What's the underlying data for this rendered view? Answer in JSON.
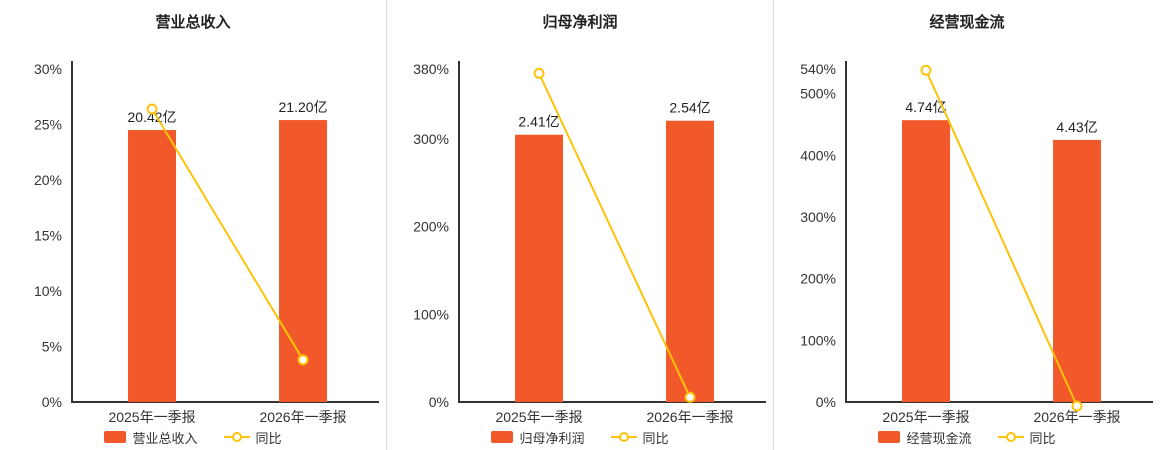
{
  "colors": {
    "bar": "#f1592a",
    "line": "#fdc30b",
    "axis": "#333333",
    "text": "#333333",
    "value_label": "#222222",
    "divider": "#dddddd",
    "background": "#ffffff"
  },
  "chart_data": [
    {
      "type": "bar+line",
      "title": "营业总收入",
      "categories": [
        "2025年一季报",
        "2026年一季报"
      ],
      "bar_series": {
        "name": "营业总收入",
        "unit": "亿",
        "values": [
          20.42,
          21.2
        ],
        "value_labels": [
          "20.42亿",
          "21.20亿"
        ],
        "tops_on_pct_axis": [
          24.5,
          25.4
        ]
      },
      "line_series": {
        "name": "同比",
        "values_pct": [
          26.4,
          3.8
        ]
      },
      "ylim": [
        0,
        30
      ],
      "yticks": [
        0,
        5,
        10,
        15,
        20,
        25,
        30
      ],
      "ytick_suffix": "%",
      "grid": false,
      "legend_position": "bottom"
    },
    {
      "type": "bar+line",
      "title": "归母净利润",
      "categories": [
        "2025年一季报",
        "2026年一季报"
      ],
      "bar_series": {
        "name": "归母净利润",
        "unit": "亿",
        "values": [
          2.41,
          2.54
        ],
        "value_labels": [
          "2.41亿",
          "2.54亿"
        ],
        "tops_on_pct_axis": [
          305,
          321
        ]
      },
      "line_series": {
        "name": "同比",
        "values_pct": [
          375,
          5.4
        ]
      },
      "ylim": [
        0,
        380
      ],
      "yticks": [
        0,
        100,
        200,
        300,
        380
      ],
      "ytick_suffix": "%",
      "grid": false,
      "legend_position": "bottom"
    },
    {
      "type": "bar+line",
      "title": "经营现金流",
      "categories": [
        "2025年一季报",
        "2026年一季报"
      ],
      "bar_series": {
        "name": "经营现金流",
        "unit": "亿",
        "values": [
          4.74,
          4.43
        ],
        "value_labels": [
          "4.74亿",
          "4.43亿"
        ],
        "tops_on_pct_axis": [
          457,
          425
        ]
      },
      "line_series": {
        "name": "同比",
        "values_pct": [
          538,
          -6.5
        ]
      },
      "ylim": [
        0,
        540
      ],
      "yticks": [
        0,
        100,
        200,
        300,
        400,
        500,
        540
      ],
      "ytick_suffix": "%",
      "grid": false,
      "legend_position": "bottom"
    }
  ]
}
